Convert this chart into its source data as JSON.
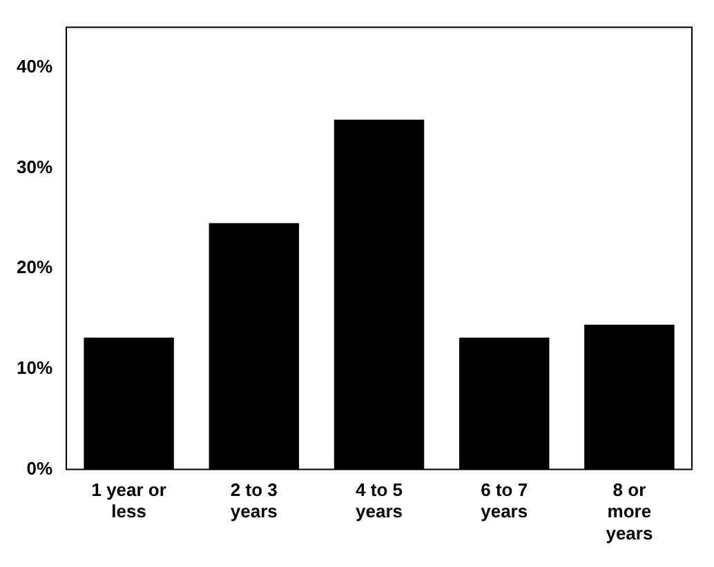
{
  "chart_data": {
    "type": "bar",
    "categories": [
      "1 year or\nless",
      "2 to 3\nyears",
      "4 to 5\nyears",
      "6 to 7\nyears",
      "8 or\nmore\nyears"
    ],
    "values": [
      13.1,
      24.5,
      34.8,
      13.1,
      14.4
    ],
    "color": "#000000",
    "ylim": [
      0,
      44
    ],
    "yticks": [
      {
        "value": 0,
        "label": "0%"
      },
      {
        "value": 10,
        "label": "10%"
      },
      {
        "value": 20,
        "label": "20%"
      },
      {
        "value": 30,
        "label": "30%"
      },
      {
        "value": 40,
        "label": "40%"
      }
    ],
    "grid": false
  }
}
